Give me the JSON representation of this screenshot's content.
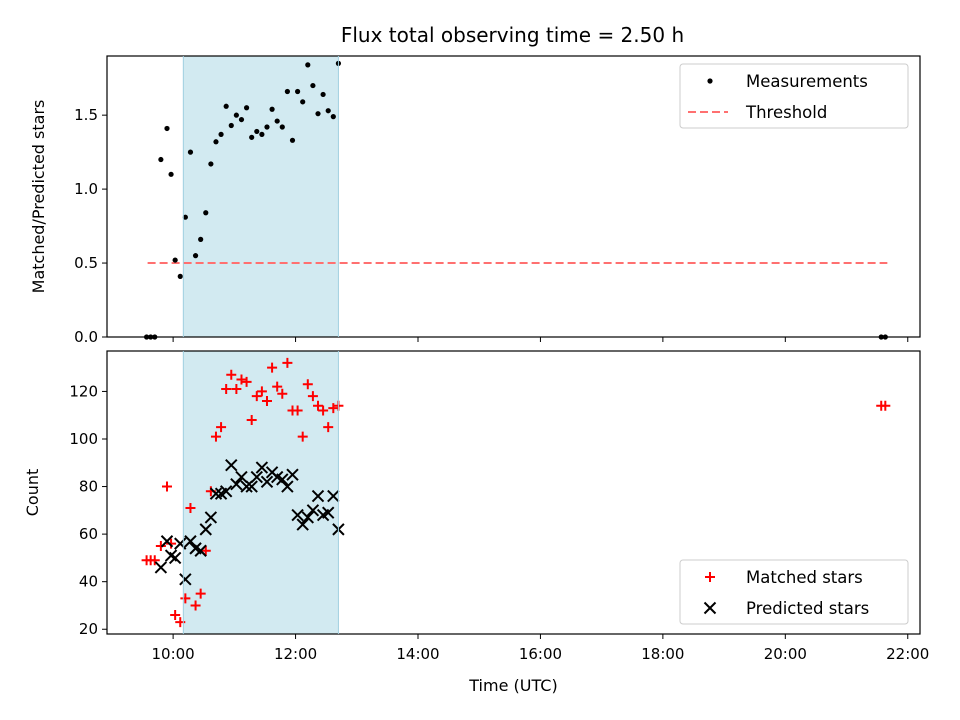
{
  "title": "Flux total observing time = 2.50 h",
  "colors": {
    "matched": "#ff0000",
    "predicted": "#000000",
    "threshold": "#ff7070",
    "window": "#add8e6",
    "measure": "#000000"
  },
  "chart_data": [
    {
      "type": "scatter",
      "ylabel": "Matched/Predicted stars",
      "xlabel": "",
      "xlim_hours": [
        8.92,
        22.2
      ],
      "ylim": [
        0,
        1.9
      ],
      "yticks": [
        0.0,
        0.5,
        1.0,
        1.5
      ],
      "ytick_labels": [
        "0.0",
        "0.5",
        "1.0",
        "1.5"
      ],
      "observing_window": [
        "10:10",
        "12:42"
      ],
      "legend": {
        "location": "upper right",
        "entries": [
          "Measurements",
          "Threshold"
        ]
      },
      "threshold": {
        "name": "Threshold",
        "value": 0.5,
        "x_range": [
          "09:35",
          "21:40"
        ],
        "style": "dashed"
      },
      "series": [
        {
          "name": "Measurements",
          "marker": "dot",
          "points": [
            [
              "09:34",
              0.0
            ],
            [
              "09:38",
              0.0
            ],
            [
              "09:42",
              0.0
            ],
            [
              "09:48",
              1.2
            ],
            [
              "09:54",
              1.41
            ],
            [
              "09:58",
              1.1
            ],
            [
              "10:02",
              0.52
            ],
            [
              "10:07",
              0.41
            ],
            [
              "10:12",
              0.81
            ],
            [
              "10:17",
              1.25
            ],
            [
              "10:22",
              0.55
            ],
            [
              "10:27",
              0.66
            ],
            [
              "10:32",
              0.84
            ],
            [
              "10:37",
              1.17
            ],
            [
              "10:42",
              1.32
            ],
            [
              "10:47",
              1.37
            ],
            [
              "10:52",
              1.56
            ],
            [
              "10:57",
              1.43
            ],
            [
              "11:02",
              1.5
            ],
            [
              "11:07",
              1.47
            ],
            [
              "11:12",
              1.55
            ],
            [
              "11:17",
              1.35
            ],
            [
              "11:22",
              1.39
            ],
            [
              "11:27",
              1.37
            ],
            [
              "11:32",
              1.42
            ],
            [
              "11:37",
              1.54
            ],
            [
              "11:42",
              1.46
            ],
            [
              "11:47",
              1.42
            ],
            [
              "11:52",
              1.66
            ],
            [
              "11:57",
              1.33
            ],
            [
              "12:02",
              1.66
            ],
            [
              "12:07",
              1.59
            ],
            [
              "12:12",
              1.84
            ],
            [
              "12:17",
              1.7
            ],
            [
              "12:22",
              1.51
            ],
            [
              "12:27",
              1.64
            ],
            [
              "12:32",
              1.53
            ],
            [
              "12:37",
              1.49
            ],
            [
              "12:42",
              1.85
            ],
            [
              "21:34",
              0.0
            ],
            [
              "21:38",
              0.0
            ]
          ]
        }
      ]
    },
    {
      "type": "scatter",
      "ylabel": "Count",
      "xlabel": "Time (UTC)",
      "xlim_hours": [
        8.92,
        22.2
      ],
      "ylim": [
        18,
        137
      ],
      "yticks": [
        20,
        40,
        60,
        80,
        100,
        120
      ],
      "ytick_labels": [
        "20",
        "40",
        "60",
        "80",
        "100",
        "120"
      ],
      "xticks": [
        "10:00",
        "12:00",
        "14:00",
        "16:00",
        "18:00",
        "20:00",
        "22:00"
      ],
      "observing_window": [
        "10:10",
        "12:42"
      ],
      "legend": {
        "location": "lower right",
        "entries": [
          "Matched stars",
          "Predicted stars"
        ]
      },
      "series": [
        {
          "name": "Matched stars",
          "marker": "plus",
          "points": [
            [
              "09:34",
              49
            ],
            [
              "09:38",
              49
            ],
            [
              "09:42",
              49
            ],
            [
              "09:48",
              55
            ],
            [
              "09:54",
              80
            ],
            [
              "09:58",
              56
            ],
            [
              "10:02",
              26
            ],
            [
              "10:07",
              23
            ],
            [
              "10:12",
              33
            ],
            [
              "10:17",
              71
            ],
            [
              "10:22",
              30
            ],
            [
              "10:27",
              35
            ],
            [
              "10:32",
              53
            ],
            [
              "10:37",
              78
            ],
            [
              "10:42",
              101
            ],
            [
              "10:47",
              105
            ],
            [
              "10:52",
              121
            ],
            [
              "10:57",
              127
            ],
            [
              "11:02",
              121
            ],
            [
              "11:07",
              125
            ],
            [
              "11:12",
              124
            ],
            [
              "11:17",
              108
            ],
            [
              "11:22",
              118
            ],
            [
              "11:27",
              120
            ],
            [
              "11:32",
              116
            ],
            [
              "11:37",
              130
            ],
            [
              "11:42",
              122
            ],
            [
              "11:47",
              119
            ],
            [
              "11:52",
              132
            ],
            [
              "11:57",
              112
            ],
            [
              "12:02",
              112
            ],
            [
              "12:07",
              101
            ],
            [
              "12:12",
              123
            ],
            [
              "12:17",
              118
            ],
            [
              "12:22",
              114
            ],
            [
              "12:27",
              112
            ],
            [
              "12:32",
              105
            ],
            [
              "12:37",
              113
            ],
            [
              "12:42",
              114
            ],
            [
              "21:34",
              114
            ],
            [
              "21:38",
              114
            ]
          ]
        },
        {
          "name": "Predicted stars",
          "marker": "x",
          "points": [
            [
              "09:48",
              46
            ],
            [
              "09:54",
              57
            ],
            [
              "09:58",
              51
            ],
            [
              "10:02",
              50
            ],
            [
              "10:07",
              56
            ],
            [
              "10:12",
              41
            ],
            [
              "10:17",
              57
            ],
            [
              "10:22",
              54
            ],
            [
              "10:27",
              53
            ],
            [
              "10:32",
              62
            ],
            [
              "10:37",
              67
            ],
            [
              "10:42",
              77
            ],
            [
              "10:47",
              77
            ],
            [
              "10:52",
              78
            ],
            [
              "10:57",
              89
            ],
            [
              "11:02",
              81
            ],
            [
              "11:07",
              84
            ],
            [
              "11:12",
              80
            ],
            [
              "11:17",
              80
            ],
            [
              "11:22",
              84
            ],
            [
              "11:27",
              88
            ],
            [
              "11:32",
              82
            ],
            [
              "11:37",
              86
            ],
            [
              "11:42",
              84
            ],
            [
              "11:47",
              83
            ],
            [
              "11:52",
              80
            ],
            [
              "11:57",
              85
            ],
            [
              "12:02",
              68
            ],
            [
              "12:07",
              64
            ],
            [
              "12:12",
              67
            ],
            [
              "12:17",
              70
            ],
            [
              "12:22",
              76
            ],
            [
              "12:27",
              68
            ],
            [
              "12:32",
              69
            ],
            [
              "12:37",
              76
            ],
            [
              "12:42",
              62
            ]
          ]
        }
      ]
    }
  ]
}
